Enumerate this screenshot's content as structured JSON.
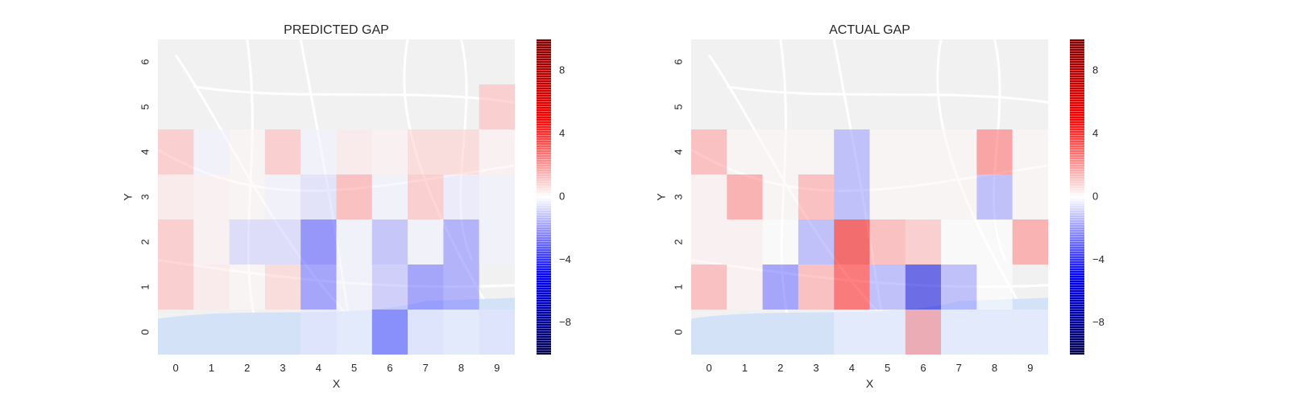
{
  "chart_data": [
    {
      "type": "heatmap",
      "title": "PREDICTED GAP",
      "xlabel": "X",
      "ylabel": "Y",
      "x_ticks": [
        "0",
        "1",
        "2",
        "3",
        "4",
        "5",
        "6",
        "7",
        "8",
        "9"
      ],
      "y_ticks": [
        "0",
        "1",
        "2",
        "3",
        "4",
        "5",
        "6"
      ],
      "colorbar": {
        "range": [
          -10,
          10
        ],
        "ticks": [
          "8",
          "4",
          "0",
          "−4",
          "−8"
        ],
        "tick_values": [
          8,
          4,
          0,
          -4,
          -8
        ],
        "cmap": "seismic"
      },
      "background": "street-map",
      "grid": false,
      "cells": [
        [
          null,
          null,
          null,
          null,
          -0.5,
          -0.3,
          -3.5,
          -0.5,
          -0.3,
          -0.5
        ],
        [
          1.5,
          0.5,
          0.2,
          1.0,
          -3.0,
          -0.3,
          -1.5,
          -3.0,
          -2.5,
          null
        ],
        [
          1.5,
          0.3,
          -1.0,
          -1.0,
          -3.5,
          -0.3,
          -1.8,
          -0.3,
          -2.5,
          -0.3
        ],
        [
          0.5,
          0.3,
          0.2,
          -0.3,
          -0.8,
          2.0,
          -0.3,
          1.5,
          -0.5,
          -0.3
        ],
        [
          1.5,
          -0.3,
          0.2,
          1.5,
          -0.3,
          0.5,
          0.3,
          1.0,
          1.0,
          0.3
        ],
        [
          null,
          null,
          null,
          null,
          null,
          null,
          null,
          null,
          null,
          1.5
        ],
        [
          null,
          null,
          null,
          null,
          null,
          null,
          null,
          null,
          null,
          null
        ]
      ]
    },
    {
      "type": "heatmap",
      "title": "ACTUAL GAP",
      "xlabel": "X",
      "ylabel": "Y",
      "x_ticks": [
        "0",
        "1",
        "2",
        "3",
        "4",
        "5",
        "6",
        "7",
        "8",
        "9"
      ],
      "y_ticks": [
        "0",
        "1",
        "2",
        "3",
        "4",
        "5",
        "6"
      ],
      "colorbar": {
        "range": [
          -10,
          10
        ],
        "ticks": [
          "8",
          "4",
          "0",
          "−4",
          "−8"
        ],
        "tick_values": [
          8,
          4,
          0,
          -4,
          -8
        ],
        "cmap": "seismic"
      },
      "background": "street-map",
      "grid": false,
      "cells": [
        [
          null,
          null,
          null,
          null,
          -0.3,
          -0.3,
          2.5,
          -0.3,
          -0.3,
          -0.3
        ],
        [
          2.0,
          0.3,
          -3.0,
          2.0,
          4.5,
          -2.0,
          -6.0,
          -2.0,
          0.0,
          null
        ],
        [
          0.3,
          0.3,
          0.0,
          -2.0,
          5.5,
          2.0,
          1.5,
          0.0,
          0.0,
          2.5
        ],
        [
          0.3,
          2.5,
          0.2,
          2.0,
          -2.0,
          0.2,
          0.2,
          0.2,
          -2.0,
          0.2
        ],
        [
          2.0,
          0.2,
          0.2,
          0.2,
          -2.0,
          0.2,
          0.2,
          0.2,
          3.0,
          0.2
        ],
        [
          null,
          null,
          null,
          null,
          null,
          null,
          null,
          null,
          null,
          null
        ],
        [
          null,
          null,
          null,
          null,
          null,
          null,
          null,
          null,
          null,
          null
        ]
      ]
    }
  ]
}
